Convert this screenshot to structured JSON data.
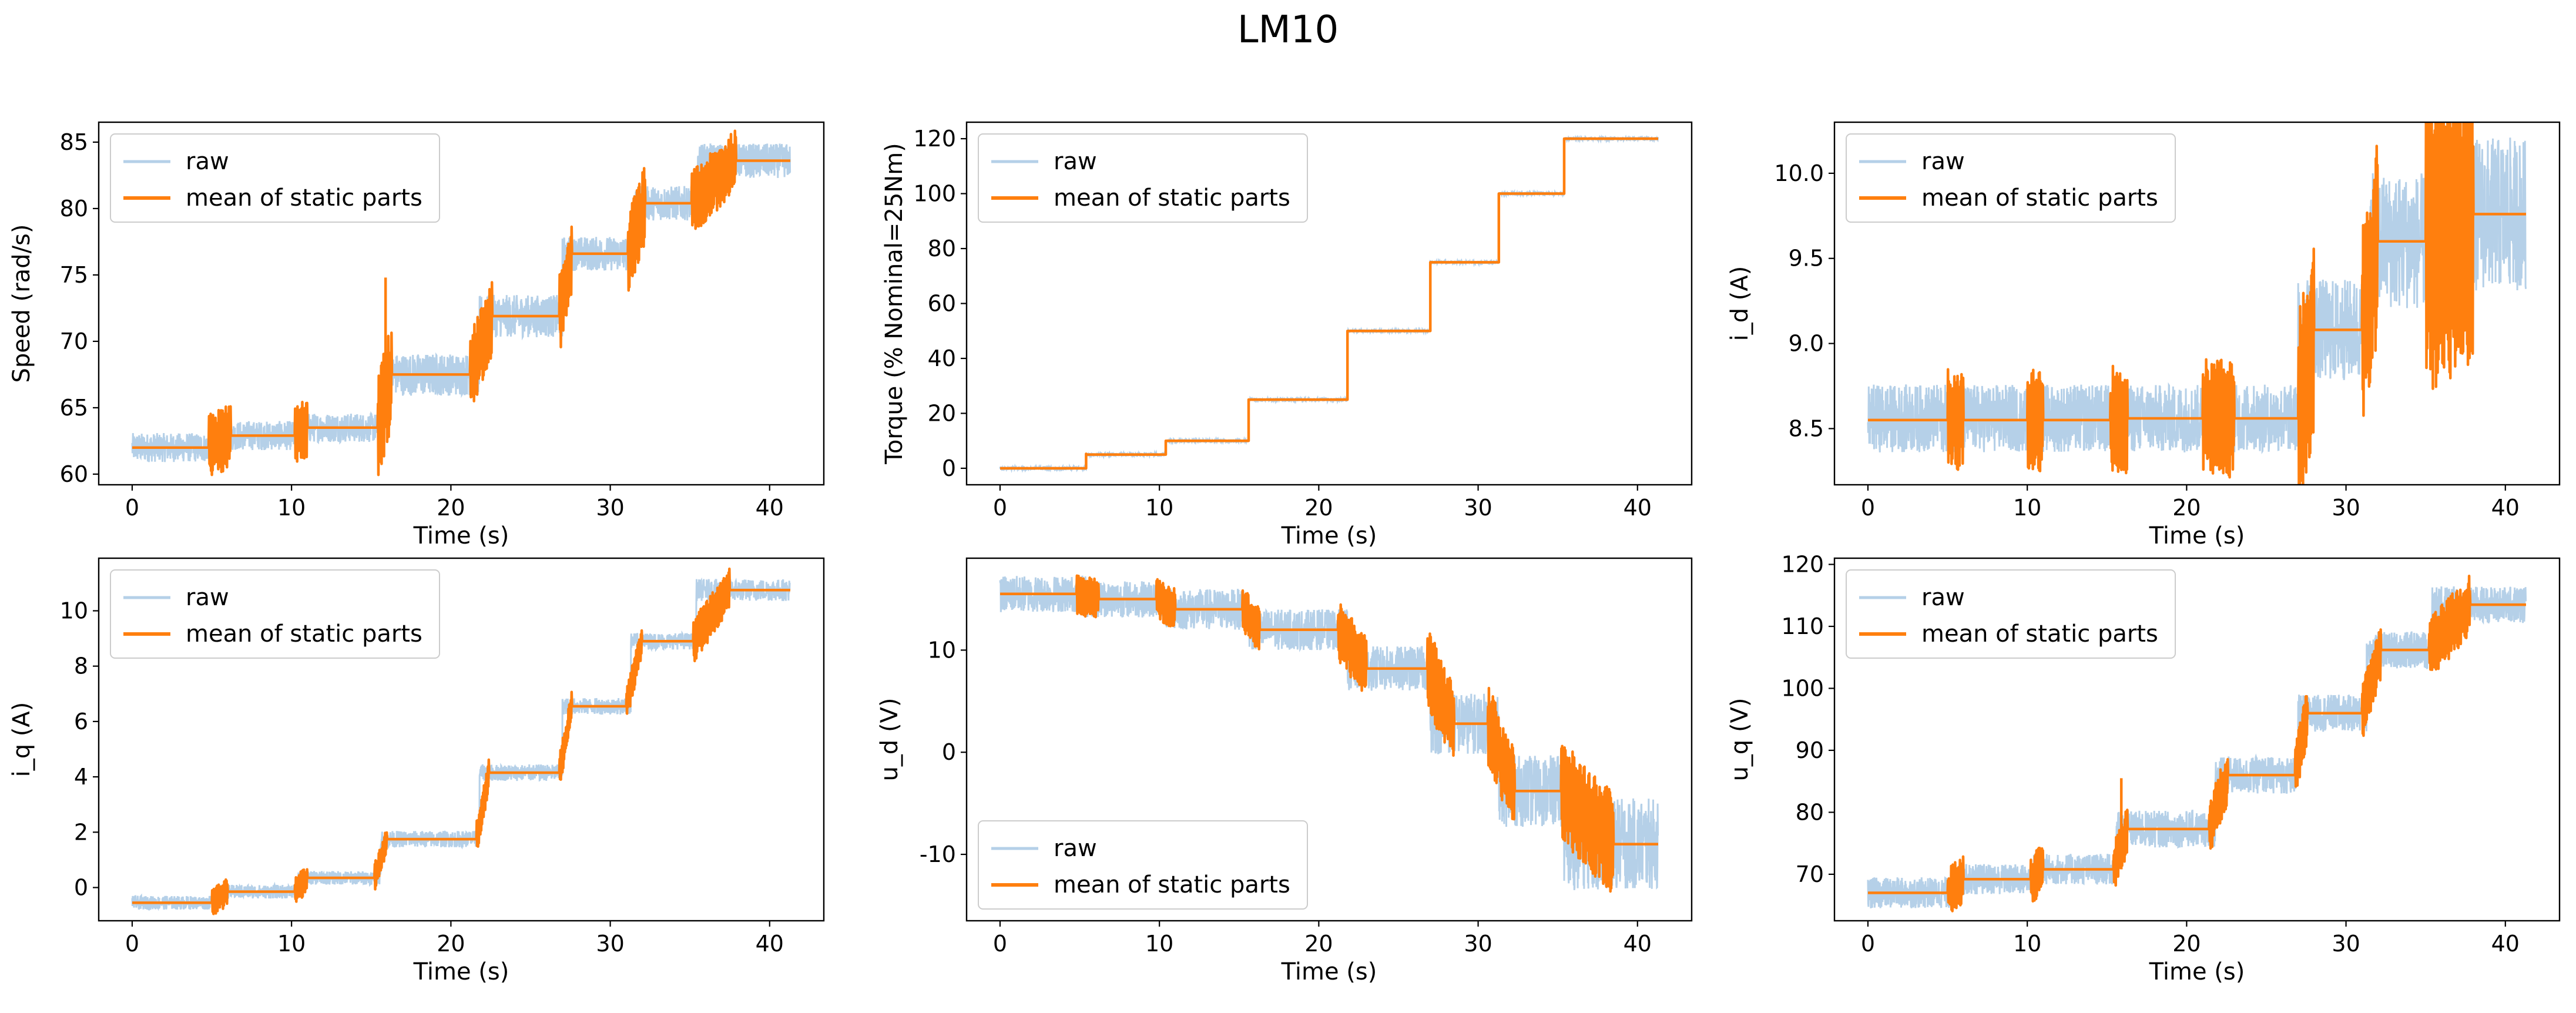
{
  "figure": {
    "title": "LM10"
  },
  "colors": {
    "raw": "#b5d0e8",
    "mean": "#ff7f0e",
    "axis": "#000000",
    "legend_border": "#cccccc"
  },
  "chart_data": [
    {
      "type": "line",
      "xlabel": "Time (s)",
      "ylabel": "Speed (rad/s)",
      "xlim": [
        -2.1,
        43.4
      ],
      "ylim": [
        59.2,
        86.5
      ],
      "xticks": [
        0,
        10,
        20,
        30,
        40
      ],
      "yticks": [
        60,
        65,
        70,
        75,
        80,
        85
      ],
      "legend": {
        "position": "upper left",
        "entries": [
          "raw",
          "mean of static parts"
        ]
      },
      "series": [
        {
          "name": "raw",
          "role": "raw",
          "segments": [
            {
              "t0": 0,
              "t1": 5.6,
              "mean": 62.0,
              "noise": 1.1
            },
            {
              "t0": 5.6,
              "t1": 10.5,
              "mean": 62.9,
              "noise": 1.1
            },
            {
              "t0": 10.5,
              "t1": 15.7,
              "mean": 63.5,
              "noise": 1.1
            },
            {
              "t0": 15.7,
              "t1": 21.8,
              "mean": 67.5,
              "noise": 1.6
            },
            {
              "t0": 21.8,
              "t1": 27.0,
              "mean": 71.9,
              "noise": 1.6
            },
            {
              "t0": 27.0,
              "t1": 31.5,
              "mean": 76.6,
              "noise": 1.3
            },
            {
              "t0": 31.5,
              "t1": 35.5,
              "mean": 80.4,
              "noise": 1.3
            },
            {
              "t0": 35.5,
              "t1": 41.3,
              "mean": 83.6,
              "noise": 1.3
            }
          ]
        },
        {
          "name": "mean of static parts",
          "role": "mean",
          "steps": [
            {
              "t0": 0,
              "t1": 4.8,
              "value": 62.0
            },
            {
              "t0": 6.2,
              "t1": 10.2,
              "value": 62.9
            },
            {
              "t0": 11.0,
              "t1": 15.4,
              "value": 63.5
            },
            {
              "t0": 16.3,
              "t1": 21.2,
              "value": 67.5
            },
            {
              "t0": 22.6,
              "t1": 26.8,
              "value": 71.9
            },
            {
              "t0": 27.6,
              "t1": 31.1,
              "value": 76.6
            },
            {
              "t0": 32.2,
              "t1": 35.1,
              "value": 80.4
            },
            {
              "t0": 37.9,
              "t1": 41.3,
              "value": 83.6
            }
          ],
          "transitions": [
            {
              "t": 5.4,
              "spread": 2.5
            },
            {
              "t": 10.6,
              "spread": 2.2
            },
            {
              "t": 15.8,
              "spread": 4.0
            },
            {
              "t": 22.0,
              "spread": 3.0
            },
            {
              "t": 27.2,
              "spread": 3.0
            },
            {
              "t": 31.6,
              "spread": 3.0
            },
            {
              "t": 36.4,
              "spread": 2.4
            }
          ],
          "spike": {
            "t": 15.9,
            "value": 74.8
          }
        }
      ]
    },
    {
      "type": "line",
      "xlabel": "Time (s)",
      "ylabel": "Torque (% Nominal=25Nm)",
      "xlim": [
        -2.1,
        43.4
      ],
      "ylim": [
        -6,
        126
      ],
      "xticks": [
        0,
        10,
        20,
        30,
        40
      ],
      "yticks": [
        0,
        20,
        40,
        60,
        80,
        100,
        120
      ],
      "legend": {
        "position": "upper left",
        "entries": [
          "raw",
          "mean of static parts"
        ]
      },
      "series": [
        {
          "name": "raw",
          "role": "raw",
          "segments": [
            {
              "t0": 0,
              "t1": 5.4,
              "mean": 0,
              "noise": 0.6
            },
            {
              "t0": 5.4,
              "t1": 10.4,
              "mean": 5,
              "noise": 0.6
            },
            {
              "t0": 10.4,
              "t1": 15.6,
              "mean": 10,
              "noise": 0.6
            },
            {
              "t0": 15.6,
              "t1": 21.8,
              "mean": 25,
              "noise": 0.6
            },
            {
              "t0": 21.8,
              "t1": 27.0,
              "mean": 50,
              "noise": 0.6
            },
            {
              "t0": 27.0,
              "t1": 31.3,
              "mean": 75,
              "noise": 0.6
            },
            {
              "t0": 31.3,
              "t1": 35.4,
              "mean": 100,
              "noise": 0.6
            },
            {
              "t0": 35.4,
              "t1": 41.3,
              "mean": 120,
              "noise": 0.6
            }
          ]
        },
        {
          "name": "mean of static parts",
          "role": "mean",
          "steps": [
            {
              "t0": 0,
              "t1": 5.4,
              "value": 0
            },
            {
              "t0": 5.4,
              "t1": 10.4,
              "value": 5
            },
            {
              "t0": 10.4,
              "t1": 15.6,
              "value": 10
            },
            {
              "t0": 15.6,
              "t1": 21.8,
              "value": 25
            },
            {
              "t0": 21.8,
              "t1": 27.0,
              "value": 50
            },
            {
              "t0": 27.0,
              "t1": 31.3,
              "value": 75
            },
            {
              "t0": 31.3,
              "t1": 35.4,
              "value": 100
            },
            {
              "t0": 35.4,
              "t1": 41.3,
              "value": 120
            }
          ],
          "transitions": [
            {
              "t": 5.5,
              "spread": 1.2
            },
            {
              "t": 10.5,
              "spread": 1.2
            },
            {
              "t": 15.7,
              "spread": 1.2
            },
            {
              "t": 21.9,
              "spread": 1.2
            },
            {
              "t": 27.1,
              "spread": 1.2
            },
            {
              "t": 31.4,
              "spread": 1.2
            },
            {
              "t": 36.0,
              "spread": 1.2
            }
          ]
        }
      ]
    },
    {
      "type": "line",
      "xlabel": "Time (s)",
      "ylabel": "i_d (A)",
      "xlim": [
        -2.1,
        43.4
      ],
      "ylim": [
        8.17,
        10.3
      ],
      "xticks": [
        0,
        10,
        20,
        30,
        40
      ],
      "yticks": [
        8.5,
        9.0,
        9.5,
        10.0
      ],
      "legend": {
        "position": "upper left",
        "entries": [
          "raw",
          "mean of static parts"
        ]
      },
      "series": [
        {
          "name": "raw",
          "role": "raw",
          "segments": [
            {
              "t0": 0,
              "t1": 27.0,
              "mean": 8.56,
              "noise": 0.2
            },
            {
              "t0": 27.0,
              "t1": 31.5,
              "mean": 9.08,
              "noise": 0.3
            },
            {
              "t0": 31.5,
              "t1": 35.0,
              "mean": 9.6,
              "noise": 0.4
            },
            {
              "t0": 35.0,
              "t1": 41.3,
              "mean": 9.76,
              "noise": 0.45
            }
          ]
        },
        {
          "name": "mean of static parts",
          "role": "mean",
          "steps": [
            {
              "t0": 0,
              "t1": 5.0,
              "value": 8.55
            },
            {
              "t0": 6.0,
              "t1": 10.0,
              "value": 8.55
            },
            {
              "t0": 11.0,
              "t1": 15.2,
              "value": 8.55
            },
            {
              "t0": 16.3,
              "t1": 21.0,
              "value": 8.56
            },
            {
              "t0": 23.0,
              "t1": 27.0,
              "value": 8.56
            },
            {
              "t0": 28.0,
              "t1": 31.0,
              "value": 9.08
            },
            {
              "t0": 32.0,
              "t1": 35.0,
              "value": 9.6
            },
            {
              "t0": 38.0,
              "t1": 41.3,
              "value": 9.76
            }
          ],
          "transitions": [
            {
              "t": 5.4,
              "spread": 0.3
            },
            {
              "t": 10.6,
              "spread": 0.3
            },
            {
              "t": 15.8,
              "spread": 0.32
            },
            {
              "t": 22.0,
              "spread": 0.35
            },
            {
              "t": 27.6,
              "spread": 0.6
            },
            {
              "t": 31.6,
              "spread": 0.6
            },
            {
              "t": 36.5,
              "spread": 0.9
            }
          ]
        }
      ]
    },
    {
      "type": "line",
      "xlabel": "Time (s)",
      "ylabel": "i_q (A)",
      "xlim": [
        -2.1,
        43.4
      ],
      "ylim": [
        -1.2,
        11.9
      ],
      "xticks": [
        0,
        10,
        20,
        30,
        40
      ],
      "yticks": [
        0,
        2,
        4,
        6,
        8,
        10
      ],
      "legend": {
        "position": "upper left",
        "entries": [
          "raw",
          "mean of static parts"
        ]
      },
      "series": [
        {
          "name": "raw",
          "role": "raw",
          "segments": [
            {
              "t0": 0,
              "t1": 5.4,
              "mean": -0.55,
              "noise": 0.25
            },
            {
              "t0": 5.4,
              "t1": 10.4,
              "mean": -0.15,
              "noise": 0.25
            },
            {
              "t0": 10.4,
              "t1": 15.6,
              "mean": 0.35,
              "noise": 0.25
            },
            {
              "t0": 15.6,
              "t1": 21.8,
              "mean": 1.75,
              "noise": 0.3
            },
            {
              "t0": 21.8,
              "t1": 27.0,
              "mean": 4.15,
              "noise": 0.3
            },
            {
              "t0": 27.0,
              "t1": 31.3,
              "mean": 6.55,
              "noise": 0.3
            },
            {
              "t0": 31.3,
              "t1": 35.4,
              "mean": 8.9,
              "noise": 0.3
            },
            {
              "t0": 35.4,
              "t1": 41.3,
              "mean": 10.75,
              "noise": 0.4
            }
          ]
        },
        {
          "name": "mean of static parts",
          "role": "mean",
          "steps": [
            {
              "t0": 0,
              "t1": 5.0,
              "value": -0.55
            },
            {
              "t0": 6.0,
              "t1": 10.2,
              "value": -0.15
            },
            {
              "t0": 11.0,
              "t1": 15.2,
              "value": 0.35
            },
            {
              "t0": 16.0,
              "t1": 21.6,
              "value": 1.75
            },
            {
              "t0": 22.4,
              "t1": 26.8,
              "value": 4.15
            },
            {
              "t0": 27.6,
              "t1": 31.0,
              "value": 6.55
            },
            {
              "t0": 32.0,
              "t1": 35.2,
              "value": 8.9
            },
            {
              "t0": 37.5,
              "t1": 41.3,
              "value": 10.75
            }
          ],
          "transitions": [
            {
              "t": 5.5,
              "spread": 0.5
            },
            {
              "t": 10.6,
              "spread": 0.5
            },
            {
              "t": 15.8,
              "spread": 0.5
            },
            {
              "t": 22.0,
              "spread": 0.6
            },
            {
              "t": 27.2,
              "spread": 0.6
            },
            {
              "t": 31.5,
              "spread": 0.6
            },
            {
              "t": 36.3,
              "spread": 0.8
            }
          ]
        }
      ]
    },
    {
      "type": "line",
      "xlabel": "Time (s)",
      "ylabel": "u_d (V)",
      "xlim": [
        -2.1,
        43.4
      ],
      "ylim": [
        -16.5,
        19
      ],
      "xticks": [
        0,
        10,
        20,
        30,
        40
      ],
      "yticks": [
        -10,
        0,
        10
      ],
      "legend": {
        "position": "lower left",
        "entries": [
          "raw",
          "mean of static parts"
        ]
      },
      "series": [
        {
          "name": "raw",
          "role": "raw",
          "segments": [
            {
              "t0": 0,
              "t1": 5.4,
              "mean": 15.5,
              "noise": 1.8
            },
            {
              "t0": 5.4,
              "t1": 10.4,
              "mean": 15.0,
              "noise": 1.8
            },
            {
              "t0": 10.4,
              "t1": 15.6,
              "mean": 14.0,
              "noise": 2.0
            },
            {
              "t0": 15.6,
              "t1": 21.8,
              "mean": 12.0,
              "noise": 2.0
            },
            {
              "t0": 21.8,
              "t1": 27.0,
              "mean": 8.2,
              "noise": 2.2
            },
            {
              "t0": 27.0,
              "t1": 31.3,
              "mean": 2.8,
              "noise": 3.0
            },
            {
              "t0": 31.3,
              "t1": 35.4,
              "mean": -3.8,
              "noise": 3.5
            },
            {
              "t0": 35.4,
              "t1": 41.3,
              "mean": -9.0,
              "noise": 4.5
            }
          ]
        },
        {
          "name": "mean of static parts",
          "role": "mean",
          "steps": [
            {
              "t0": 0,
              "t1": 4.8,
              "value": 15.5
            },
            {
              "t0": 6.2,
              "t1": 9.8,
              "value": 15.0
            },
            {
              "t0": 11.0,
              "t1": 15.2,
              "value": 14.0
            },
            {
              "t0": 16.3,
              "t1": 21.2,
              "value": 12.0
            },
            {
              "t0": 23.0,
              "t1": 26.8,
              "value": 8.2
            },
            {
              "t0": 28.5,
              "t1": 30.6,
              "value": 2.8
            },
            {
              "t0": 32.3,
              "t1": 35.2,
              "value": -3.8
            },
            {
              "t0": 38.5,
              "t1": 41.3,
              "value": -9.0
            }
          ],
          "transitions": [
            {
              "t": 5.5,
              "spread": 2.0
            },
            {
              "t": 10.5,
              "spread": 2.0
            },
            {
              "t": 15.9,
              "spread": 2.2
            },
            {
              "t": 22.2,
              "spread": 3.0
            },
            {
              "t": 27.6,
              "spread": 4.0
            },
            {
              "t": 31.7,
              "spread": 4.0
            },
            {
              "t": 36.8,
              "spread": 5.0
            }
          ]
        }
      ]
    },
    {
      "type": "line",
      "xlabel": "Time (s)",
      "ylabel": "u_q (V)",
      "xlim": [
        -2.1,
        43.4
      ],
      "ylim": [
        62.5,
        121
      ],
      "xticks": [
        0,
        10,
        20,
        30,
        40
      ],
      "yticks": [
        70,
        80,
        90,
        100,
        110,
        120
      ],
      "legend": {
        "position": "upper left",
        "entries": [
          "raw",
          "mean of static parts"
        ]
      },
      "series": [
        {
          "name": "raw",
          "role": "raw",
          "segments": [
            {
              "t0": 0,
              "t1": 5.4,
              "mean": 67.0,
              "noise": 2.5
            },
            {
              "t0": 5.4,
              "t1": 10.4,
              "mean": 69.2,
              "noise": 2.5
            },
            {
              "t0": 10.4,
              "t1": 15.6,
              "mean": 70.8,
              "noise": 2.5
            },
            {
              "t0": 15.6,
              "t1": 21.8,
              "mean": 77.3,
              "noise": 3.0
            },
            {
              "t0": 21.8,
              "t1": 27.0,
              "mean": 86.0,
              "noise": 3.0
            },
            {
              "t0": 27.0,
              "t1": 31.3,
              "mean": 96.0,
              "noise": 3.0
            },
            {
              "t0": 31.3,
              "t1": 35.4,
              "mean": 106.2,
              "noise": 3.0
            },
            {
              "t0": 35.4,
              "t1": 41.3,
              "mean": 113.5,
              "noise": 3.0
            }
          ]
        },
        {
          "name": "mean of static parts",
          "role": "mean",
          "steps": [
            {
              "t0": 0,
              "t1": 5.0,
              "value": 67.0
            },
            {
              "t0": 6.0,
              "t1": 10.2,
              "value": 69.2
            },
            {
              "t0": 11.0,
              "t1": 15.4,
              "value": 70.8
            },
            {
              "t0": 16.3,
              "t1": 21.4,
              "value": 77.3
            },
            {
              "t0": 22.6,
              "t1": 26.8,
              "value": 86.0
            },
            {
              "t0": 27.6,
              "t1": 31.0,
              "value": 96.0
            },
            {
              "t0": 32.2,
              "t1": 35.2,
              "value": 106.2
            },
            {
              "t0": 37.8,
              "t1": 41.3,
              "value": 113.5
            }
          ],
          "transitions": [
            {
              "t": 5.5,
              "spread": 4.0
            },
            {
              "t": 10.6,
              "spread": 4.0
            },
            {
              "t": 15.8,
              "spread": 4.0
            },
            {
              "t": 22.0,
              "spread": 4.5
            },
            {
              "t": 27.2,
              "spread": 4.5
            },
            {
              "t": 31.5,
              "spread": 4.5
            },
            {
              "t": 36.5,
              "spread": 5.0
            }
          ],
          "spike": {
            "t": 15.9,
            "value": 85.5
          }
        }
      ]
    }
  ]
}
